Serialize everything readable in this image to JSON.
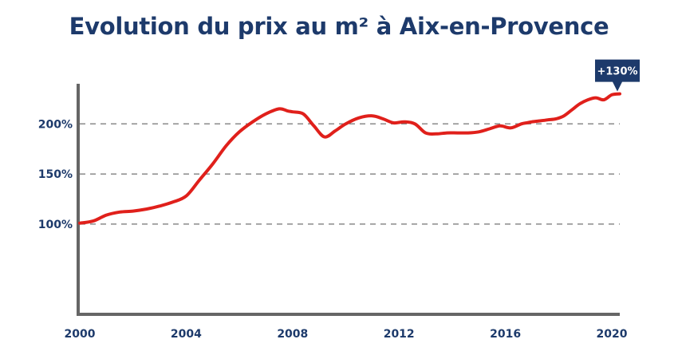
{
  "chart_data": {
    "type": "line",
    "title": "Evolution du prix au m² à Aix-en-Provence",
    "xlabel": "",
    "ylabel": "",
    "x_ticks": [
      "2000",
      "2004",
      "2008",
      "2012",
      "2016",
      "2020"
    ],
    "y_ticks": [
      "100%",
      "150%",
      "200%"
    ],
    "xlim": [
      2000,
      2020.3
    ],
    "ylim": [
      10,
      240
    ],
    "grid": "horizontal dashed at 100%, 150%, 200%",
    "series": [
      {
        "color": "#e0201b",
        "x": [
          2000,
          2000.5,
          2001,
          2001.5,
          2002,
          2002.5,
          2003,
          2003.5,
          2004,
          2004.5,
          2005,
          2005.5,
          2006,
          2006.5,
          2007,
          2007.5,
          2007.8,
          2008,
          2008.4,
          2008.8,
          2009.2,
          2009.6,
          2010,
          2010.5,
          2011,
          2011.4,
          2011.8,
          2012.2,
          2012.6,
          2013,
          2013.4,
          2013.8,
          2014.2,
          2014.6,
          2015,
          2015.4,
          2015.8,
          2016.2,
          2016.6,
          2016.8,
          2017,
          2017.3,
          2017.6,
          2017.9,
          2018.2,
          2018.5,
          2018.8,
          2019.1,
          2019.4,
          2019.7,
          2020,
          2020.3
        ],
        "y": [
          101,
          103,
          109,
          112,
          113,
          115,
          118,
          122,
          128,
          144,
          160,
          178,
          192,
          202,
          210,
          215,
          213,
          212,
          210,
          198,
          187,
          193,
          200,
          206,
          208,
          205,
          201,
          202,
          200,
          191,
          190,
          191,
          191,
          191,
          192,
          195,
          198,
          196,
          200,
          201,
          202,
          203,
          204,
          205,
          208,
          214,
          220,
          224,
          226,
          224,
          229,
          230
        ]
      }
    ],
    "annotations": [
      {
        "text": "+130%",
        "x": 2020.3,
        "y": 230
      }
    ]
  }
}
